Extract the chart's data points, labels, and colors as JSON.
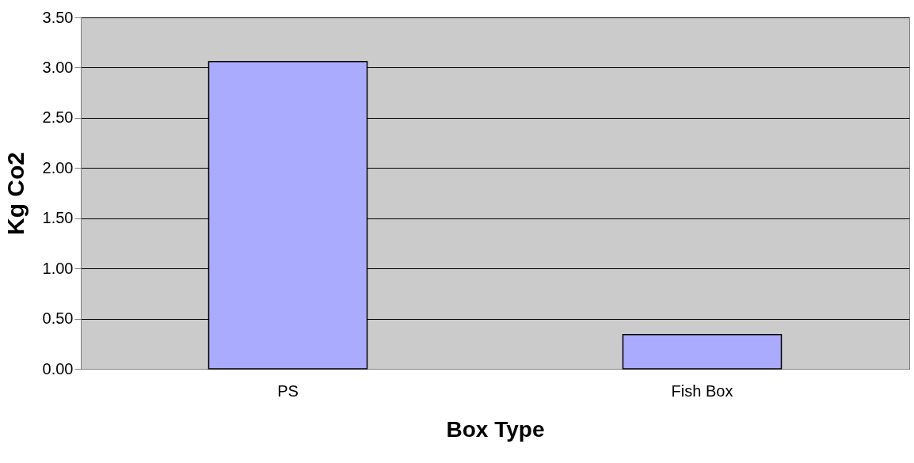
{
  "chart_data": {
    "type": "bar",
    "xlabel": "Box Type",
    "ylabel": "Kg Co2",
    "categories": [
      "PS",
      "Fish Box"
    ],
    "values": [
      3.06,
      0.34
    ],
    "color": "#aaaaff",
    "ylim": [
      0,
      3.5
    ],
    "yticks": [
      {
        "value": 0,
        "label": "0.00"
      },
      {
        "value": 0.5,
        "label": "0.50"
      },
      {
        "value": 1,
        "label": "1.00"
      },
      {
        "value": 1.5,
        "label": "1.50"
      },
      {
        "value": 2,
        "label": "2.00"
      },
      {
        "value": 2.5,
        "label": "2.50"
      },
      {
        "value": 3,
        "label": "3.00"
      },
      {
        "value": 3.5,
        "label": "3.50"
      }
    ],
    "grid": "y"
  }
}
